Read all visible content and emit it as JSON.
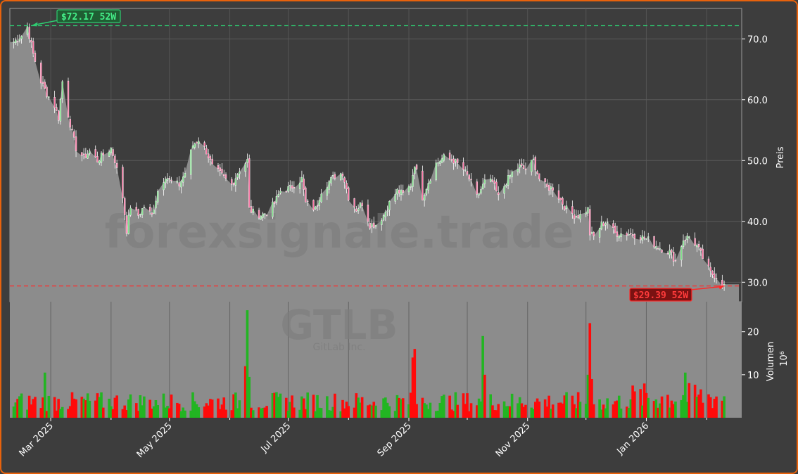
{
  "chart_data": {
    "type": "candlestick",
    "ticker": "GTLB",
    "company": "GitLab Inc.",
    "watermark": "forexsignale.trade",
    "ylabel_price": "Preis",
    "ylabel_volume": "Volumen",
    "volume_exponent_label": "10",
    "volume_exponent_power": "6",
    "high_label": "$72.17 52W",
    "low_label": "$29.39 52W",
    "high_value": 72.17,
    "low_value": 29.39,
    "price_ylim": [
      26.8,
      75
    ],
    "volume_ylim": [
      0,
      26
    ],
    "price_ticks": [
      "30.0",
      "40.0",
      "50.0",
      "60.0",
      "70.0"
    ],
    "volume_ticks": [
      "10",
      "20"
    ],
    "x_ticks": [
      "Mar 2025",
      "May 2025",
      "Jul 2025",
      "Sep 2025",
      "Nov 2025",
      "Jan 2026"
    ],
    "colors": {
      "up": "#22b522",
      "down": "#ff0a0a",
      "high": "#2ecc71",
      "low": "#ff2a2a",
      "area": "#8c8c8c",
      "frame": "#e8620c"
    },
    "close_path": [
      [
        "2025-02-10",
        69.5
      ],
      [
        "2025-02-14",
        70.5
      ],
      [
        "2025-02-17",
        72.0
      ],
      [
        "2025-02-20",
        67.5
      ],
      [
        "2025-02-24",
        63.0
      ],
      [
        "2025-02-27",
        61.0
      ],
      [
        "2025-03-03",
        59.0
      ],
      [
        "2025-03-05",
        57.0
      ],
      [
        "2025-03-07",
        63.0
      ],
      [
        "2025-03-10",
        57.5
      ],
      [
        "2025-03-12",
        54.5
      ],
      [
        "2025-03-14",
        52.0
      ],
      [
        "2025-03-18",
        50.5
      ],
      [
        "2025-03-21",
        51.5
      ],
      [
        "2025-03-25",
        50.0
      ],
      [
        "2025-03-28",
        51.0
      ],
      [
        "2025-04-01",
        52.0
      ],
      [
        "2025-04-03",
        50.0
      ],
      [
        "2025-04-07",
        44.0
      ],
      [
        "2025-04-09",
        38.5
      ],
      [
        "2025-04-11",
        42.5
      ],
      [
        "2025-04-15",
        41.0
      ],
      [
        "2025-04-18",
        42.5
      ],
      [
        "2025-04-22",
        41.0
      ],
      [
        "2025-04-25",
        45.0
      ],
      [
        "2025-04-29",
        47.5
      ],
      [
        "2025-05-02",
        46.5
      ],
      [
        "2025-05-06",
        46.0
      ],
      [
        "2025-05-09",
        48.0
      ],
      [
        "2025-05-13",
        52.5
      ],
      [
        "2025-05-16",
        53.5
      ],
      [
        "2025-05-20",
        51.5
      ],
      [
        "2025-05-23",
        49.0
      ],
      [
        "2025-05-28",
        47.5
      ],
      [
        "2025-06-02",
        46.0
      ],
      [
        "2025-06-06",
        48.5
      ],
      [
        "2025-06-10",
        50.0
      ],
      [
        "2025-06-11",
        42.0
      ],
      [
        "2025-06-13",
        41.5
      ],
      [
        "2025-06-17",
        41.0
      ],
      [
        "2025-06-20",
        41.5
      ],
      [
        "2025-06-24",
        43.0
      ],
      [
        "2025-06-27",
        45.0
      ],
      [
        "2025-07-02",
        45.5
      ],
      [
        "2025-07-08",
        47.0
      ],
      [
        "2025-07-10",
        43.0
      ],
      [
        "2025-07-15",
        42.0
      ],
      [
        "2025-07-18",
        45.0
      ],
      [
        "2025-07-22",
        46.5
      ],
      [
        "2025-07-25",
        47.5
      ],
      [
        "2025-07-29",
        48.0
      ],
      [
        "2025-08-01",
        44.0
      ],
      [
        "2025-08-05",
        42.0
      ],
      [
        "2025-08-08",
        43.0
      ],
      [
        "2025-08-12",
        39.5
      ],
      [
        "2025-08-15",
        39.5
      ],
      [
        "2025-08-19",
        41.0
      ],
      [
        "2025-08-22",
        43.0
      ],
      [
        "2025-08-26",
        45.0
      ],
      [
        "2025-08-29",
        44.5
      ],
      [
        "2025-09-02",
        46.0
      ],
      [
        "2025-09-04",
        49.5
      ],
      [
        "2025-09-08",
        44.0
      ],
      [
        "2025-09-11",
        46.5
      ],
      [
        "2025-09-15",
        49.5
      ],
      [
        "2025-09-19",
        50.5
      ],
      [
        "2025-09-24",
        50.0
      ],
      [
        "2025-09-29",
        48.5
      ],
      [
        "2025-10-02",
        47.0
      ],
      [
        "2025-10-06",
        44.0
      ],
      [
        "2025-10-10",
        46.5
      ],
      [
        "2025-10-14",
        46.5
      ],
      [
        "2025-10-17",
        44.0
      ],
      [
        "2025-10-21",
        46.5
      ],
      [
        "2025-10-24",
        48.0
      ],
      [
        "2025-10-28",
        49.0
      ],
      [
        "2025-10-31",
        48.5
      ],
      [
        "2025-11-04",
        50.0
      ],
      [
        "2025-11-07",
        47.0
      ],
      [
        "2025-11-11",
        45.5
      ],
      [
        "2025-11-14",
        45.5
      ],
      [
        "2025-11-18",
        43.5
      ],
      [
        "2025-11-21",
        42.0
      ],
      [
        "2025-11-25",
        41.0
      ],
      [
        "2025-11-28",
        41.0
      ],
      [
        "2025-12-02",
        42.0
      ],
      [
        "2025-12-03",
        38.0
      ],
      [
        "2025-12-05",
        37.5
      ],
      [
        "2025-12-09",
        39.5
      ],
      [
        "2025-12-12",
        40.0
      ],
      [
        "2025-12-16",
        38.0
      ],
      [
        "2025-12-19",
        38.0
      ],
      [
        "2025-12-23",
        38.0
      ],
      [
        "2025-12-29",
        37.5
      ],
      [
        "2026-01-02",
        37.0
      ],
      [
        "2026-01-06",
        36.0
      ],
      [
        "2026-01-09",
        35.5
      ],
      [
        "2026-01-13",
        35.0
      ],
      [
        "2026-01-16",
        33.5
      ],
      [
        "2026-01-20",
        37.0
      ],
      [
        "2026-01-23",
        37.5
      ],
      [
        "2026-01-27",
        36.0
      ],
      [
        "2026-01-30",
        34.0
      ],
      [
        "2026-02-03",
        31.5
      ],
      [
        "2026-02-06",
        31.0
      ],
      [
        "2026-02-10",
        29.4
      ]
    ],
    "volume_spikes": [
      [
        "2025-02-26",
        10.5,
        "up"
      ],
      [
        "2025-06-09",
        12.0,
        "down"
      ],
      [
        "2025-06-10",
        25.0,
        "up"
      ],
      [
        "2025-06-11",
        9.5,
        "up"
      ],
      [
        "2025-09-03",
        14.0,
        "down"
      ],
      [
        "2025-09-04",
        16.0,
        "down"
      ],
      [
        "2025-10-09",
        19.0,
        "up"
      ],
      [
        "2025-10-10",
        10.0,
        "down"
      ],
      [
        "2025-12-02",
        10.0,
        "up"
      ],
      [
        "2025-12-03",
        22.0,
        "down"
      ],
      [
        "2025-12-04",
        9.0,
        "down"
      ],
      [
        "2026-01-21",
        10.5,
        "up"
      ]
    ],
    "volume_base_range": [
      1.5,
      7.5
    ]
  }
}
